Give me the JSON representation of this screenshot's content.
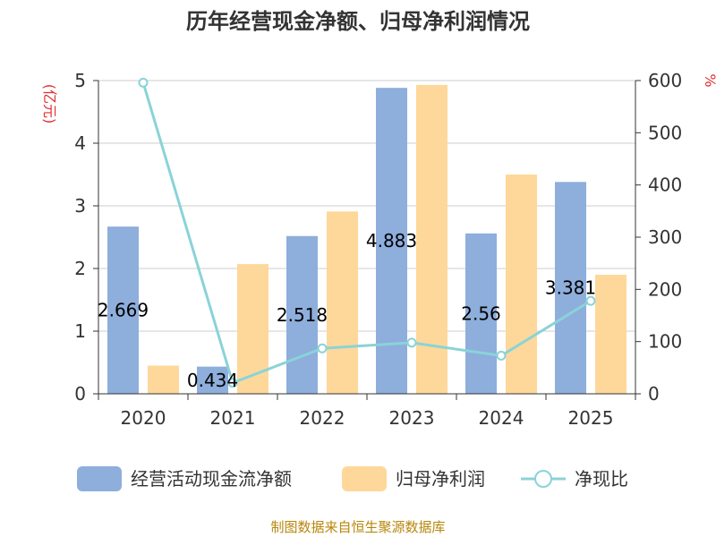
{
  "chart_data": {
    "type": "bar",
    "title": "历年经营现金净额、归母净利润情况",
    "categories": [
      "2020",
      "2021",
      "2022",
      "2023",
      "2024",
      "2025"
    ],
    "y_left": {
      "unit": "(亿元)",
      "range": [
        0,
        5
      ],
      "ticks": [
        "0",
        "1",
        "2",
        "3",
        "4",
        "5"
      ]
    },
    "y_right": {
      "unit": "%",
      "range": [
        0,
        600
      ],
      "ticks": [
        "0",
        "100",
        "200",
        "300",
        "400",
        "500",
        "600"
      ]
    },
    "series": [
      {
        "name": "经营活动现金流净额",
        "type": "bar",
        "axis": "left",
        "color": "#8eaedc",
        "values": [
          2.669,
          0.434,
          2.518,
          4.883,
          2.56,
          3.381
        ],
        "labels": [
          "2.669",
          "0.434",
          "2.518",
          "4.883",
          "2.56",
          "3.381"
        ]
      },
      {
        "name": "归母净利润",
        "type": "bar",
        "axis": "left",
        "color": "#fdd89a",
        "values": [
          0.45,
          2.07,
          2.91,
          4.93,
          3.5,
          1.9
        ]
      },
      {
        "name": "净现比",
        "type": "line",
        "axis": "right",
        "color": "#8ad3d8",
        "values": [
          596,
          21,
          87,
          98,
          73,
          178
        ]
      }
    ],
    "grid": true,
    "legend": "bottom"
  },
  "source": "制图数据来自恒生聚源数据库"
}
